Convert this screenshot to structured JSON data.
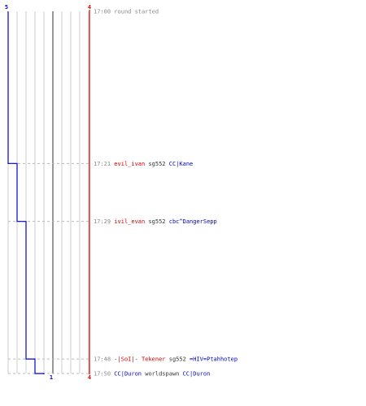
{
  "chart_data": {
    "type": "line",
    "teams": {
      "blue": {
        "color": "#0000cc",
        "start_score": "5",
        "end_score": "1"
      },
      "red": {
        "color": "#dd0000",
        "start_score": "4",
        "end_score": "4"
      }
    },
    "blue_steps": [
      {
        "time": "17:00",
        "score": 5
      },
      {
        "time": "17:21",
        "score": 4
      },
      {
        "time": "17:29",
        "score": 3
      },
      {
        "time": "17:48",
        "score": 2
      },
      {
        "time": "17:50",
        "score": 1
      }
    ],
    "events": [
      {
        "time": "17:00",
        "segments": [
          {
            "text": "round started",
            "style": "time"
          }
        ]
      },
      {
        "time": "17:21",
        "segments": [
          {
            "text": "evil_ivan",
            "style": "red"
          },
          {
            "text": " sg552 ",
            "style": "neutral"
          },
          {
            "text": "CC|Kane",
            "style": "blue"
          }
        ]
      },
      {
        "time": "17:29",
        "segments": [
          {
            "text": "ivil_evan",
            "style": "red"
          },
          {
            "text": " sg552 ",
            "style": "neutral"
          },
          {
            "text": "cbc^DangerSepp",
            "style": "blue"
          }
        ]
      },
      {
        "time": "17:48",
        "segments": [
          {
            "text": "-|SoI|- Tekener",
            "style": "red"
          },
          {
            "text": " sg552 ",
            "style": "neutral"
          },
          {
            "text": "=HIV=Ptahhotep",
            "style": "blue"
          }
        ]
      },
      {
        "time": "17:50",
        "segments": [
          {
            "text": "CC|Duron",
            "style": "blue"
          },
          {
            "text": " worldspawn ",
            "style": "neutral"
          },
          {
            "text": "CC|Duron",
            "style": "blue"
          }
        ]
      }
    ]
  }
}
